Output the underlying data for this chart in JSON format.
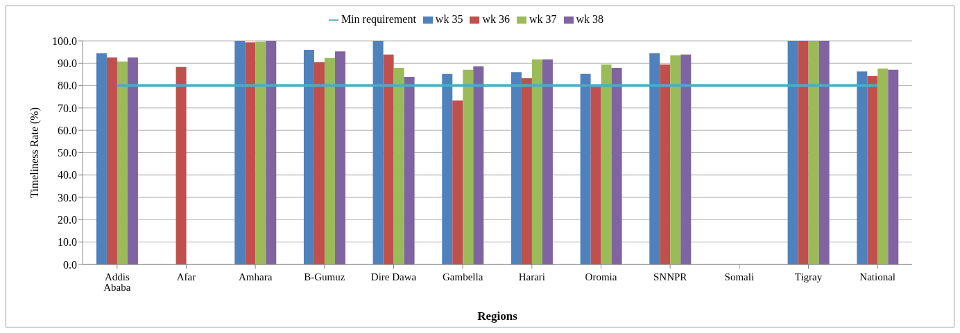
{
  "chart_data": {
    "type": "bar",
    "xlabel": "Regions",
    "ylabel": "Timeliness Rate (%)",
    "categories": [
      "Addis Ababa",
      "Afar",
      "Amhara",
      "B-Gumuz",
      "Dire Dawa",
      "Gambella",
      "Harari",
      "Oromia",
      "SNNPR",
      "Somali",
      "Tigray",
      "National"
    ],
    "series": [
      {
        "name": "wk 35",
        "color": "#4f81bd",
        "values": [
          94.4,
          null,
          100,
          96.0,
          100,
          85.2,
          86.0,
          85.2,
          94.4,
          null,
          100,
          86.3
        ]
      },
      {
        "name": "wk 36",
        "color": "#c0504d",
        "values": [
          92.6,
          88.3,
          99.3,
          90.5,
          93.9,
          73.3,
          83.3,
          79.5,
          89.4,
          null,
          100,
          84.3
        ]
      },
      {
        "name": "wk 37",
        "color": "#9bbb59",
        "values": [
          90.8,
          null,
          99.6,
          92.3,
          87.9,
          87.1,
          91.7,
          89.4,
          93.5,
          null,
          100,
          87.6
        ]
      },
      {
        "name": "wk 38",
        "color": "#8064a2",
        "values": [
          92.6,
          null,
          100,
          95.3,
          83.9,
          88.6,
          91.7,
          87.9,
          93.9,
          null,
          100,
          87.1
        ]
      },
      {
        "name": "Min requirement",
        "type": "line",
        "color": "#4bacc6",
        "values": [
          80,
          80,
          80,
          80,
          80,
          80,
          80,
          80,
          80,
          80,
          80,
          80
        ]
      }
    ],
    "ylim": [
      0,
      100
    ],
    "yticks": [
      {
        "value": 0,
        "label": "0.0"
      },
      {
        "value": 10,
        "label": "10.0"
      },
      {
        "value": 20,
        "label": "20.0"
      },
      {
        "value": 30,
        "label": "30.0"
      },
      {
        "value": 40,
        "label": "40.0"
      },
      {
        "value": 50,
        "label": "50.0"
      },
      {
        "value": 60,
        "label": "60.0"
      },
      {
        "value": 70,
        "label": "70.0"
      },
      {
        "value": 80,
        "label": "80.0"
      },
      {
        "value": 90,
        "label": "90.0"
      },
      {
        "value": 100,
        "label": "100.0"
      }
    ],
    "grid": "y",
    "legend": "top",
    "marker": "none"
  }
}
